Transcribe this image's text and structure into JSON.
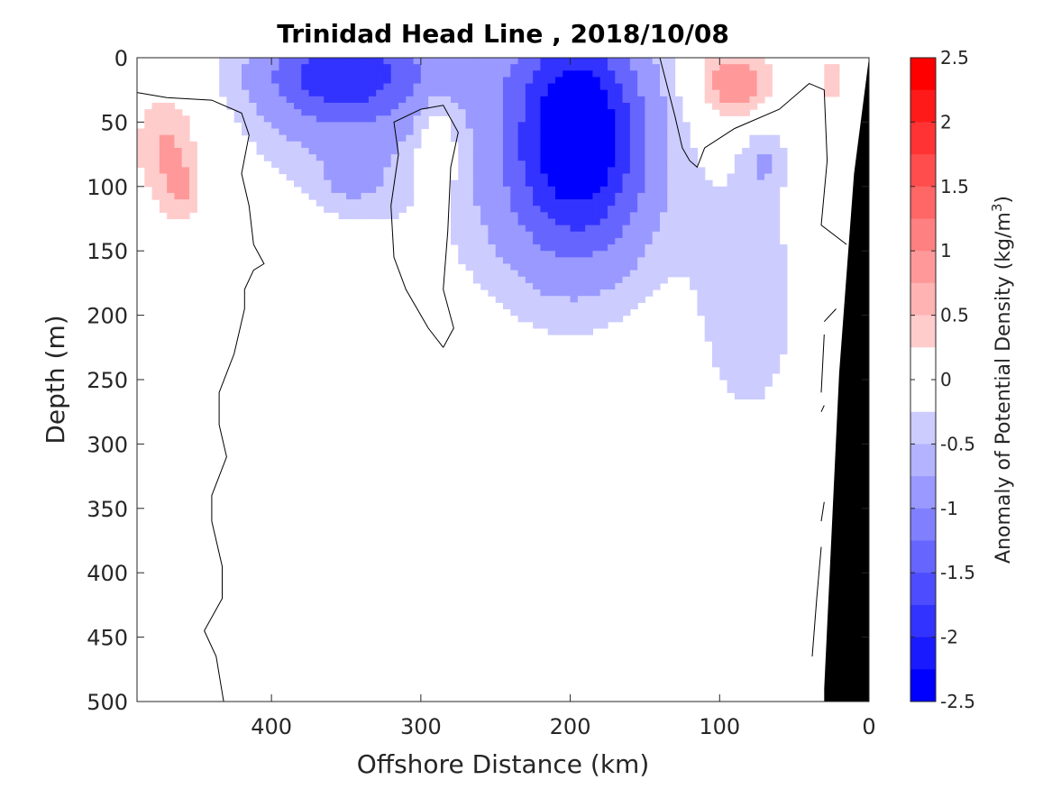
{
  "chart_data": {
    "type": "heatmap",
    "title": "Trinidad Head Line , 2018/10/08",
    "xlabel": "Offshore Distance (km)",
    "ylabel": "Depth (m)",
    "xlim": [
      490,
      0
    ],
    "ylim": [
      0,
      500
    ],
    "x_reversed": true,
    "y_reversed": true,
    "x_ticks": [
      400,
      300,
      200,
      100,
      0
    ],
    "y_ticks": [
      0,
      50,
      100,
      150,
      200,
      250,
      300,
      350,
      400,
      450,
      500
    ],
    "grid": false,
    "colorbar": {
      "label_prefix": "Anomaly of Potential Density (kg/m",
      "label_sup": "3",
      "label_suffix": ")",
      "range": [
        -2.5,
        2.5
      ],
      "step": 0.25,
      "tick_values": [
        2.5,
        2,
        1.5,
        1,
        0.5,
        0,
        -0.5,
        -1,
        -1.5,
        -2,
        -2.5
      ],
      "tick_labels": [
        "2.5",
        "2",
        "1.5",
        "1",
        "0.5",
        "0",
        "-0.5",
        "-1",
        "-1.5",
        "-2",
        "-2.5"
      ],
      "negative_color": "#0000ff",
      "positive_color": "#ff0000",
      "zero_color": "#ffffff"
    },
    "blobs": [
      {
        "x": 355,
        "z": 15,
        "rx": 52,
        "rz": 40,
        "value": -1.25
      },
      {
        "x": 345,
        "z": 45,
        "rx": 72,
        "rz": 95,
        "value": -0.45
      },
      {
        "x": 345,
        "z": 90,
        "rx": 16,
        "rz": 18,
        "value": -0.55
      },
      {
        "x": 195,
        "z": 55,
        "rx": 44,
        "rz": 85,
        "value": -2.3
      },
      {
        "x": 205,
        "z": 110,
        "rx": 75,
        "rz": 100,
        "value": -0.55
      },
      {
        "x": 310,
        "z": 10,
        "rx": 95,
        "rz": 25,
        "value": -0.35
      },
      {
        "x": 80,
        "z": 190,
        "rx": 38,
        "rz": 110,
        "value": -0.4
      },
      {
        "x": 70,
        "z": 80,
        "rx": 14,
        "rz": 25,
        "value": -0.4
      },
      {
        "x": 470,
        "z": 70,
        "rx": 22,
        "rz": 45,
        "value": 0.55
      },
      {
        "x": 460,
        "z": 105,
        "rx": 12,
        "rz": 25,
        "value": 0.35
      },
      {
        "x": 290,
        "z": 70,
        "rx": 14,
        "rz": 50,
        "value": 0.45
      },
      {
        "x": 90,
        "z": 20,
        "rx": 25,
        "rz": 28,
        "value": 0.8
      },
      {
        "x": 25,
        "z": 18,
        "rx": 8,
        "rz": 25,
        "value": 0.35
      }
    ],
    "zero_contours": [
      [
        [
          490,
          27
        ],
        [
          470,
          31
        ],
        [
          440,
          33
        ],
        [
          420,
          43
        ],
        [
          415,
          60
        ],
        [
          420,
          90
        ],
        [
          415,
          115
        ],
        [
          412,
          145
        ],
        [
          405,
          160
        ],
        [
          412,
          165
        ],
        [
          418,
          180
        ],
        [
          418,
          195
        ],
        [
          425,
          230
        ],
        [
          435,
          260
        ],
        [
          435,
          285
        ],
        [
          430,
          310
        ],
        [
          440,
          340
        ],
        [
          440,
          360
        ],
        [
          433,
          395
        ],
        [
          433,
          420
        ],
        [
          445,
          445
        ],
        [
          437,
          465
        ],
        [
          432,
          500
        ]
      ],
      [
        [
          285,
          225
        ],
        [
          278,
          210
        ],
        [
          285,
          180
        ],
        [
          282,
          135
        ],
        [
          280,
          85
        ],
        [
          275,
          58
        ],
        [
          285,
          37
        ],
        [
          300,
          40
        ],
        [
          318,
          50
        ],
        [
          315,
          75
        ],
        [
          320,
          115
        ],
        [
          318,
          155
        ],
        [
          310,
          180
        ],
        [
          295,
          210
        ],
        [
          285,
          225
        ]
      ],
      [
        [
          140,
          0
        ],
        [
          130,
          45
        ],
        [
          125,
          70
        ],
        [
          120,
          80
        ],
        [
          115,
          85
        ],
        [
          110,
          70
        ],
        [
          90,
          55
        ],
        [
          60,
          40
        ],
        [
          40,
          20
        ],
        [
          30,
          25
        ],
        [
          28,
          80
        ],
        [
          32,
          130
        ],
        [
          15,
          145
        ]
      ],
      [
        [
          22,
          195
        ],
        [
          30,
          205
        ]
      ],
      [
        [
          30,
          215
        ],
        [
          32,
          260
        ]
      ],
      [
        [
          30,
          270
        ],
        [
          32,
          275
        ]
      ],
      [
        [
          30,
          345
        ],
        [
          32,
          360
        ]
      ],
      [
        [
          32,
          380
        ],
        [
          35,
          420
        ],
        [
          38,
          465
        ]
      ]
    ],
    "land_polygon": [
      [
        0,
        0
      ],
      [
        10,
        90
      ],
      [
        20,
        245
      ],
      [
        30,
        490
      ],
      [
        30,
        500
      ],
      [
        0,
        500
      ]
    ]
  }
}
